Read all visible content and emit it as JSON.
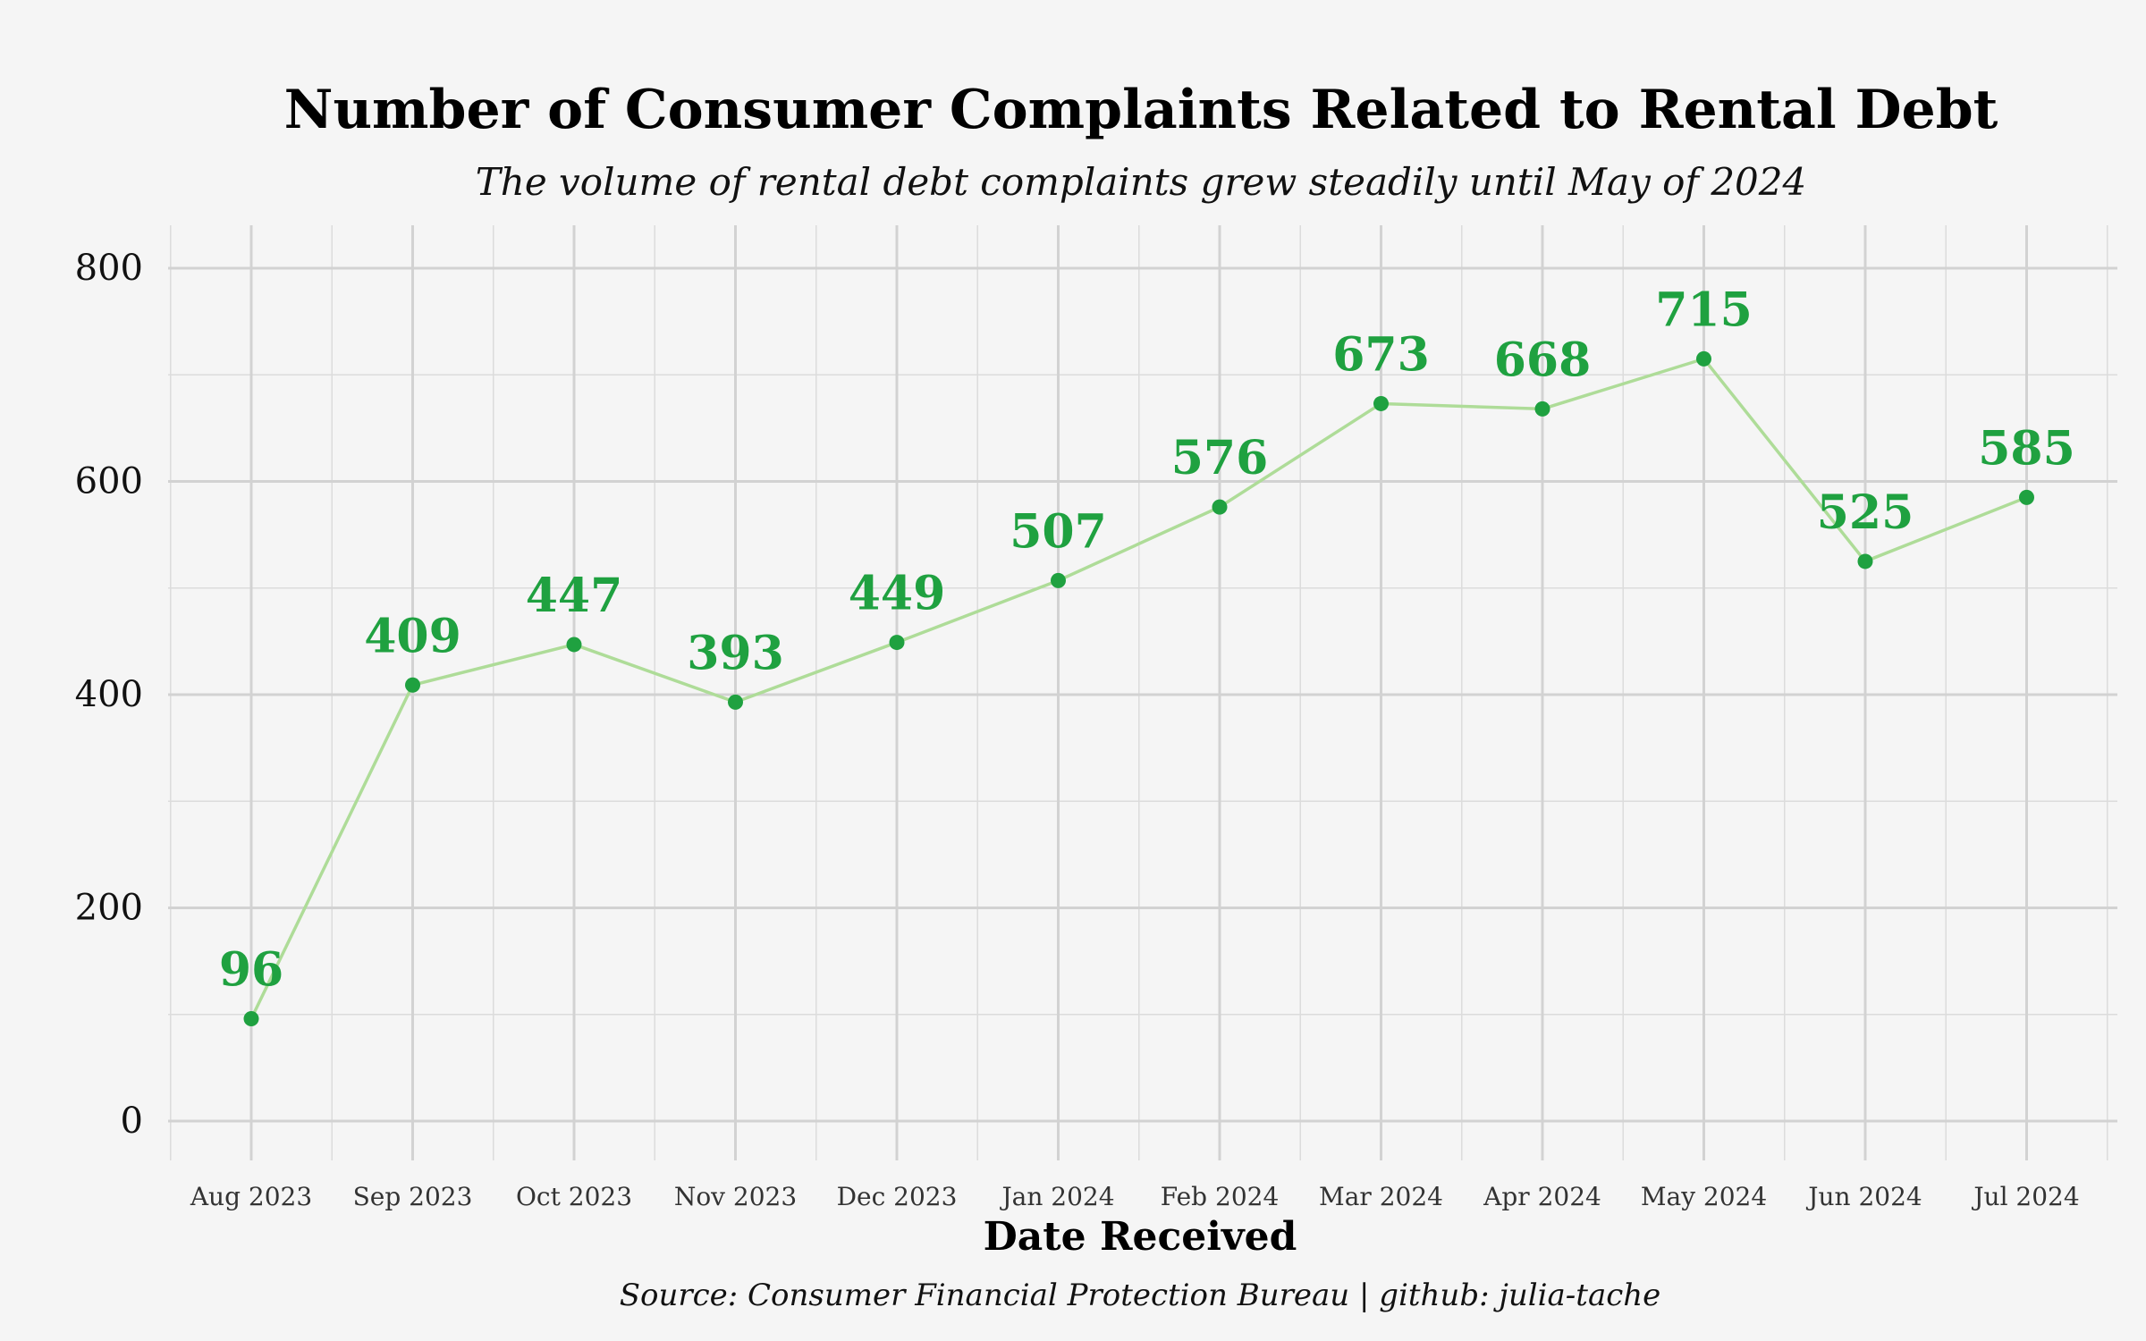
{
  "chart_data": {
    "type": "line",
    "title": "Number of Consumer Complaints Related to Rental Debt",
    "subtitle": "The volume of rental debt complaints grew steadily until May of 2024",
    "xlabel": "Date Received",
    "ylabel": "",
    "caption": "Source: Consumer Financial Protection Bureau | github: julia-tache",
    "categories": [
      "Aug 2023",
      "Sep 2023",
      "Oct 2023",
      "Nov 2023",
      "Dec 2023",
      "Jan 2024",
      "Feb 2024",
      "Mar 2024",
      "Apr 2024",
      "May 2024",
      "Jun 2024",
      "Jul 2024"
    ],
    "values": [
      96,
      409,
      447,
      393,
      449,
      507,
      576,
      673,
      668,
      715,
      525,
      585
    ],
    "data_labels": [
      "96",
      "409",
      "447",
      "393",
      "449",
      "507",
      "576",
      "673",
      "668",
      "715",
      "525",
      "585"
    ],
    "yticks": [
      0,
      200,
      400,
      600,
      800
    ],
    "ytick_labels": [
      "0",
      "200",
      "400",
      "600",
      "800"
    ],
    "ylim": [
      -40,
      840
    ],
    "grid": true,
    "legend": "none",
    "colors": {
      "line": "#aedc98",
      "point": "#1fa140",
      "label": "#1fa140",
      "background": "#f5f5f5",
      "grid": "#d2d2d2"
    }
  }
}
